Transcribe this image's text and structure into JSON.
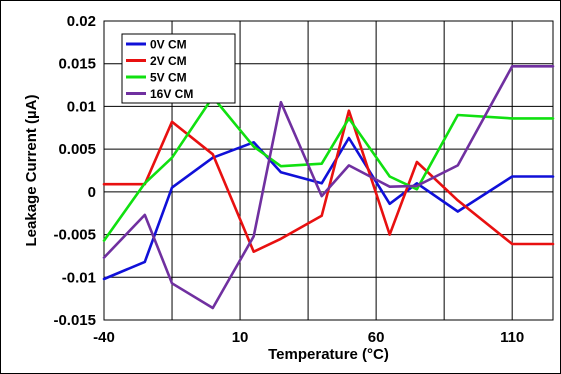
{
  "chart_data": {
    "type": "line",
    "xlabel": "Temperature (°C)",
    "ylabel": "Leakage Current (µA)",
    "xlim": [
      -40,
      125
    ],
    "ylim": [
      -0.015,
      0.02
    ],
    "x_ticks": [
      -40,
      10,
      60,
      110
    ],
    "x_tick_labels": [
      "-40",
      "10",
      "60",
      "110"
    ],
    "x_grid": [
      -40,
      -15,
      10,
      35,
      60,
      85,
      110
    ],
    "y_ticks": [
      -0.015,
      -0.01,
      -0.005,
      0,
      0.005,
      0.01,
      0.015,
      0.02
    ],
    "y_tick_labels": [
      "-0.015",
      "-0.01",
      "-0.005",
      "0",
      "0.005",
      "0.01",
      "0.015",
      "0.02"
    ],
    "grid": true,
    "legend_position": "top-left",
    "x": [
      -40,
      -25,
      -15,
      0,
      15,
      25,
      40,
      50,
      65,
      75,
      90,
      110,
      125
    ],
    "series": [
      {
        "name": "0V CM",
        "color": "#1010d8",
        "values": [
          -0.0102,
          -0.0082,
          0.0005,
          0.004,
          0.0058,
          0.0023,
          0.001,
          0.0063,
          -0.0014,
          0.001,
          -0.0023,
          0.0018,
          0.0018
        ]
      },
      {
        "name": "2V CM",
        "color": "#e81010",
        "values": [
          0.0009,
          0.0009,
          0.0082,
          0.0044,
          -0.007,
          -0.0055,
          -0.0028,
          0.0095,
          -0.005,
          0.0035,
          -0.001,
          -0.0061,
          -0.0061
        ]
      },
      {
        "name": "5V CM",
        "color": "#10e010",
        "values": [
          -0.0057,
          0.001,
          0.004,
          0.0111,
          0.0053,
          0.003,
          0.0033,
          0.0086,
          0.0018,
          0.0003,
          0.009,
          0.0086,
          0.0086
        ]
      },
      {
        "name": "16V CM",
        "color": "#7030a0",
        "values": [
          -0.0077,
          -0.0027,
          -0.0107,
          -0.0136,
          -0.0052,
          0.0105,
          -0.0005,
          0.0031,
          0.0006,
          0.0007,
          0.0031,
          0.0147,
          0.0147
        ]
      }
    ]
  }
}
